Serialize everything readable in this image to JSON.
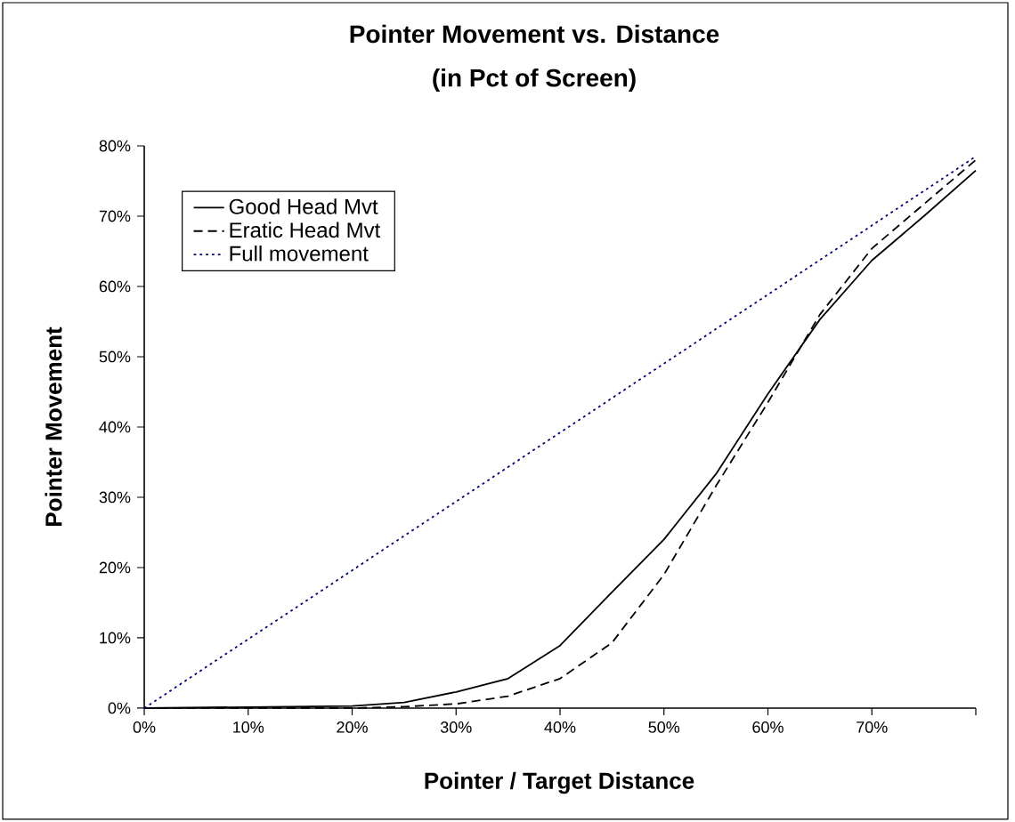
{
  "chart_data": {
    "type": "line",
    "title": "Pointer Movement vs. Distance",
    "subtitle": "(in Pct of Screen)",
    "xlabel": "Pointer / Target Distance",
    "ylabel": "Pointer Movement",
    "x": [
      0,
      20,
      25,
      30,
      35,
      40,
      45,
      50,
      55,
      60,
      65,
      70,
      75,
      80
    ],
    "series": [
      {
        "name": "Good Head Mvt",
        "color": "#000000",
        "line_style": "solid",
        "values": [
          0,
          0.3,
          0.8,
          2.3,
          4.2,
          8.9,
          16.5,
          24,
          33.3,
          44.7,
          55.3,
          63.7,
          70,
          76.5
        ]
      },
      {
        "name": "Eratic Head Mvt",
        "color": "#000000",
        "line_style": "dashed",
        "values": [
          0,
          0,
          0.2,
          0.6,
          1.7,
          4.2,
          9.3,
          19,
          31.6,
          43.5,
          56,
          65.4,
          71.7,
          78
        ]
      },
      {
        "name": "Full movement",
        "color": "#000080",
        "line_style": "dotted",
        "x": [
          0,
          40,
          80
        ],
        "values": [
          0,
          39.2,
          78.5
        ]
      }
    ],
    "xlim": [
      0,
      80
    ],
    "ylim": [
      0,
      80
    ],
    "xticks": [
      {
        "value": 0,
        "label": "0%"
      },
      {
        "value": 10,
        "label": "10%"
      },
      {
        "value": 20,
        "label": "20%"
      },
      {
        "value": 30,
        "label": "30%"
      },
      {
        "value": 40,
        "label": "40%"
      },
      {
        "value": 50,
        "label": "50%"
      },
      {
        "value": 60,
        "label": "60%"
      },
      {
        "value": 70,
        "label": "70%"
      },
      {
        "value": 80,
        "label": null
      }
    ],
    "yticks": [
      {
        "value": 0,
        "label": "0%"
      },
      {
        "value": 10,
        "label": "10%"
      },
      {
        "value": 20,
        "label": "20%"
      },
      {
        "value": 30,
        "label": "30%"
      },
      {
        "value": 40,
        "label": "40%"
      },
      {
        "value": 50,
        "label": "50%"
      },
      {
        "value": 60,
        "label": "60%"
      },
      {
        "value": 70,
        "label": "70%"
      },
      {
        "value": 80,
        "label": "80%"
      }
    ],
    "grid": false,
    "legend": "top left",
    "marker": "none"
  }
}
